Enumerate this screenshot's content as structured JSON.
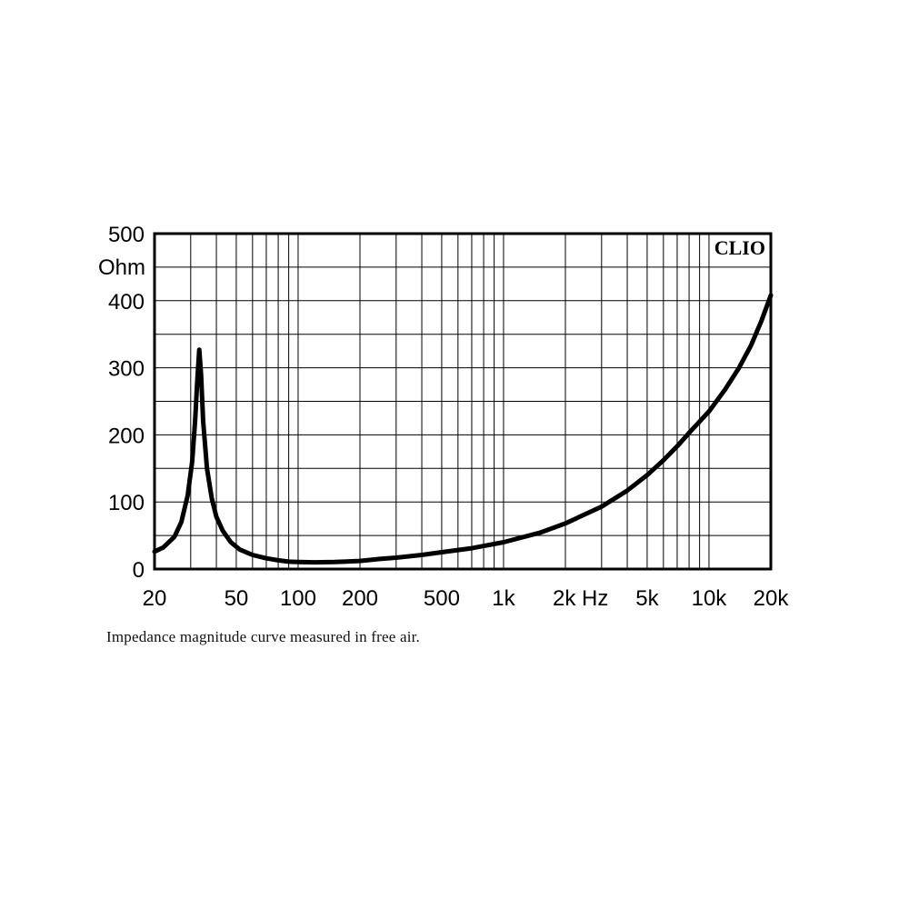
{
  "caption": "Impedance magnitude curve measured in free air.",
  "chart_data": {
    "type": "line",
    "brand_label": "CLIO",
    "y_unit": "Ohm",
    "x_scale": "log",
    "xlim": [
      20,
      20000
    ],
    "ylim": [
      0,
      500
    ],
    "grid": true,
    "x_tick_labels": [
      {
        "value": 20,
        "label": "20"
      },
      {
        "value": 50,
        "label": "50"
      },
      {
        "value": 100,
        "label": "100"
      },
      {
        "value": 200,
        "label": "200"
      },
      {
        "value": 500,
        "label": "500"
      },
      {
        "value": 1000,
        "label": "1k"
      },
      {
        "value": 2000,
        "label": "2k Hz"
      },
      {
        "value": 5000,
        "label": "5k"
      },
      {
        "value": 10000,
        "label": "10k"
      },
      {
        "value": 20000,
        "label": "20k"
      }
    ],
    "y_tick_labels": [
      {
        "value": 0,
        "label": "0"
      },
      {
        "value": 100,
        "label": "100"
      },
      {
        "value": 200,
        "label": "200"
      },
      {
        "value": 300,
        "label": "300"
      },
      {
        "value": 400,
        "label": "400"
      },
      {
        "value": 500,
        "label": "500"
      }
    ],
    "series": [
      {
        "color": "#000000",
        "points": [
          [
            20,
            26
          ],
          [
            22,
            32
          ],
          [
            25,
            48
          ],
          [
            27,
            70
          ],
          [
            29,
            110
          ],
          [
            30.5,
            160
          ],
          [
            31.5,
            220
          ],
          [
            32.3,
            280
          ],
          [
            33,
            327
          ],
          [
            33.7,
            290
          ],
          [
            34.5,
            220
          ],
          [
            36,
            150
          ],
          [
            38,
            105
          ],
          [
            40,
            78
          ],
          [
            43,
            57
          ],
          [
            47,
            40
          ],
          [
            52,
            29
          ],
          [
            60,
            21
          ],
          [
            70,
            16
          ],
          [
            80,
            13
          ],
          [
            90,
            11
          ],
          [
            100,
            10.5
          ],
          [
            120,
            10
          ],
          [
            150,
            10.5
          ],
          [
            200,
            12
          ],
          [
            250,
            15
          ],
          [
            300,
            17
          ],
          [
            400,
            21
          ],
          [
            500,
            25
          ],
          [
            700,
            31
          ],
          [
            1000,
            40
          ],
          [
            1500,
            54
          ],
          [
            2000,
            68
          ],
          [
            3000,
            93
          ],
          [
            4000,
            117
          ],
          [
            5000,
            140
          ],
          [
            6000,
            162
          ],
          [
            7000,
            183
          ],
          [
            8000,
            203
          ],
          [
            10000,
            235
          ],
          [
            12000,
            268
          ],
          [
            14000,
            300
          ],
          [
            16000,
            333
          ],
          [
            18000,
            370
          ],
          [
            20000,
            408
          ]
        ]
      }
    ]
  }
}
